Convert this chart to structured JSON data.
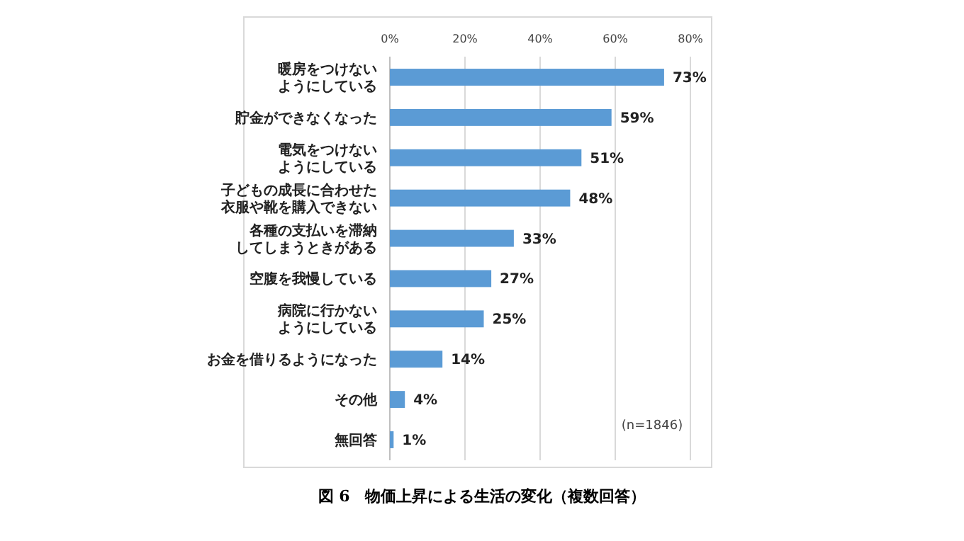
{
  "chart_data": {
    "type": "bar",
    "orientation": "horizontal",
    "title": "図 6　物価上昇による生活の変化（複数回答）",
    "categories": [
      "暖房をつけないようにしている",
      "貯金ができなくなった",
      "電気をつけないようにしている",
      "子どもの成長に合わせた衣服や靴を購入できない",
      "各種の支払いを滞納してしまうときがある",
      "空腹を我慢している",
      "病院に行かないようにしている",
      "お金を借りるようになった",
      "その他",
      "無回答"
    ],
    "values": [
      73,
      59,
      51,
      48,
      33,
      27,
      25,
      14,
      4,
      1
    ],
    "value_labels": [
      "73%",
      "59%",
      "51%",
      "48%",
      "33%",
      "27%",
      "25%",
      "14%",
      "4%",
      "1%"
    ],
    "color": "#5b9bd5",
    "xlim": [
      0,
      80
    ],
    "xticks": [
      {
        "value": 0,
        "label": "0%"
      },
      {
        "value": 20,
        "label": "20%"
      },
      {
        "value": 40,
        "label": "40%"
      },
      {
        "value": 60,
        "label": "60%"
      },
      {
        "value": 80,
        "label": "80%"
      }
    ],
    "grid": "x",
    "annotations": [
      "(n=1846)"
    ]
  }
}
